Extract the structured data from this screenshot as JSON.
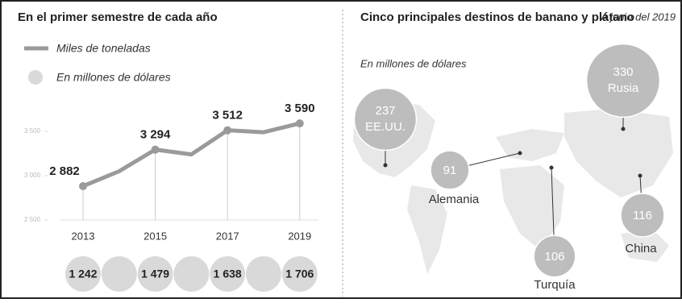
{
  "chart_data": [
    {
      "type": "line",
      "title": "En el primer semestre de cada año",
      "categories": [
        "2013",
        null,
        "2015",
        null,
        "2017",
        null,
        "2019"
      ],
      "series": [
        {
          "name": "Miles de toneladas",
          "color": "#9a9a9a",
          "values": [
            2882,
            3050,
            3294,
            3240,
            3512,
            3490,
            3590
          ],
          "value_labels": [
            "2 882",
            null,
            "3 294",
            null,
            "3 512",
            null,
            "3 590"
          ]
        },
        {
          "name": "En millones de dólares",
          "color": "#d9d9d9",
          "values": [
            1242,
            null,
            1479,
            null,
            1638,
            null,
            1706
          ],
          "value_labels": [
            "1 242",
            null,
            "1 479",
            null,
            "1 638",
            null,
            "1 706"
          ]
        }
      ],
      "ylim": [
        2500,
        3700
      ],
      "yticks": [
        {
          "value": 2500,
          "label": "2 500"
        },
        {
          "value": 3000,
          "label": "3 000"
        },
        {
          "value": 3500,
          "label": "3 500"
        }
      ]
    },
    {
      "type": "bubble",
      "title": "Cinco principales destinos de banano y plátano",
      "subtitle": "A junio del 2019",
      "note": "En millones de dólares",
      "categories": [
        "EE.UU.",
        "Alemania",
        "Turquía",
        "China",
        "Rusia"
      ],
      "values": [
        237,
        91,
        106,
        116,
        330
      ],
      "color": "#bdbdbd"
    }
  ]
}
